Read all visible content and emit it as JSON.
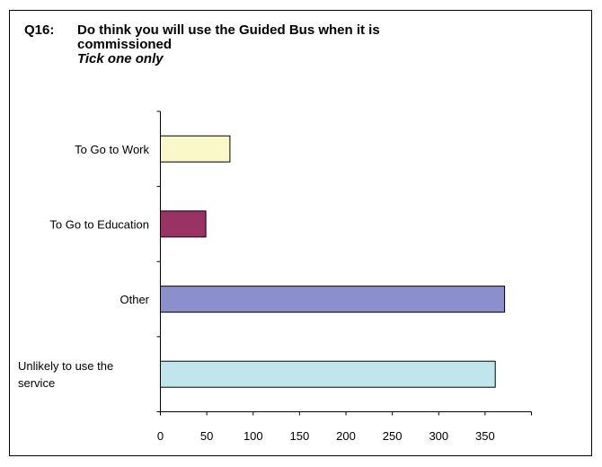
{
  "chart_data": {
    "type": "bar",
    "orientation": "horizontal",
    "question_number": "Q16:",
    "title_line1": "Do think you will use the Guided Bus when it is",
    "title_line2": "commissioned",
    "subtitle": "Tick one only",
    "categories": [
      [
        "To Go to Work"
      ],
      [
        "To Go to Education"
      ],
      [
        "Other"
      ],
      [
        "Unlikely to  use the",
        "service"
      ]
    ],
    "values": [
      75,
      49,
      371,
      361
    ],
    "colors": [
      "#f8f8c8",
      "#993366",
      "#8b90cc",
      "#c0e6ec"
    ],
    "xlim": [
      0,
      400
    ],
    "xticks": [
      0,
      50,
      100,
      150,
      200,
      250,
      300,
      350
    ],
    "grid": false,
    "legend": false
  }
}
